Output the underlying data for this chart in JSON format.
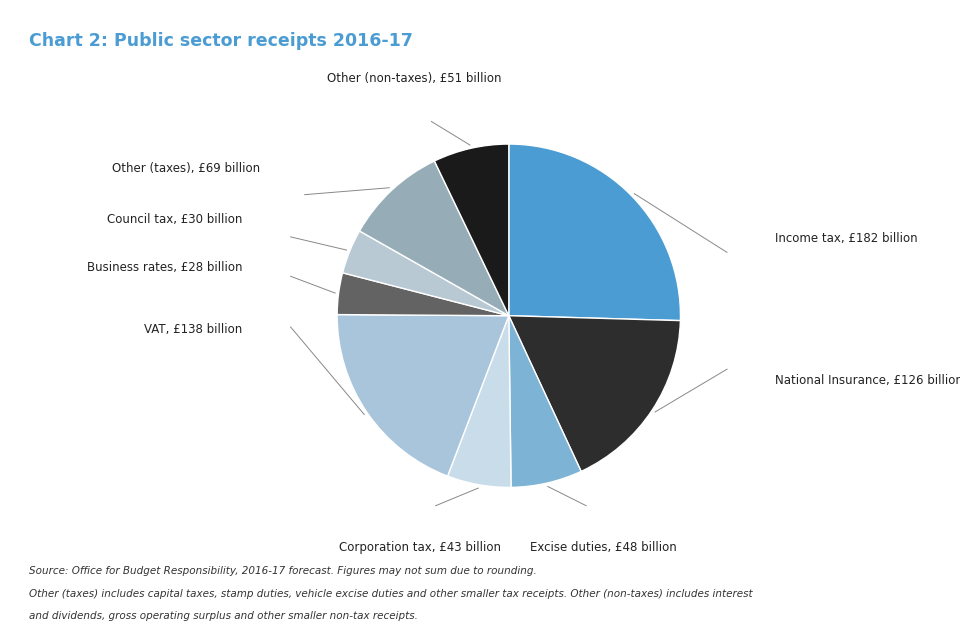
{
  "title": "Chart 2: Public sector receipts 2016-17",
  "title_color": "#4b9cd3",
  "slices": [
    {
      "label": "Income tax, £182 billion",
      "value": 182,
      "color": "#4b9cd3"
    },
    {
      "label": "National Insurance, £126 billion",
      "value": 126,
      "color": "#2d2d2d"
    },
    {
      "label": "Excise duties, £48 billion",
      "value": 48,
      "color": "#7db3d4"
    },
    {
      "label": "Corporation tax, £43 billion",
      "value": 43,
      "color": "#c9dcea"
    },
    {
      "label": "VAT, £138 billion",
      "value": 138,
      "color": "#a8c5dc"
    },
    {
      "label": "Business rates, £28 billion",
      "value": 28,
      "color": "#636363"
    },
    {
      "label": "Council tax, £30 billion",
      "value": 30,
      "color": "#b8c9d4"
    },
    {
      "label": "Other (taxes), £69 billion",
      "value": 69,
      "color": "#96adb8"
    },
    {
      "label": "Other (non-taxes), £51 billion",
      "value": 51,
      "color": "#1a1a1a"
    }
  ],
  "footnote_line1": "Source: Office for Budget Responsibility, 2016-17 forecast. Figures may not sum due to rounding.",
  "footnote_line2": "Other (taxes) includes capital taxes, stamp duties, vehicle excise duties and other smaller tax receipts. Other (non-taxes) includes interest",
  "footnote_line3": "and dividends, gross operating surplus and other smaller non-tax receipts."
}
